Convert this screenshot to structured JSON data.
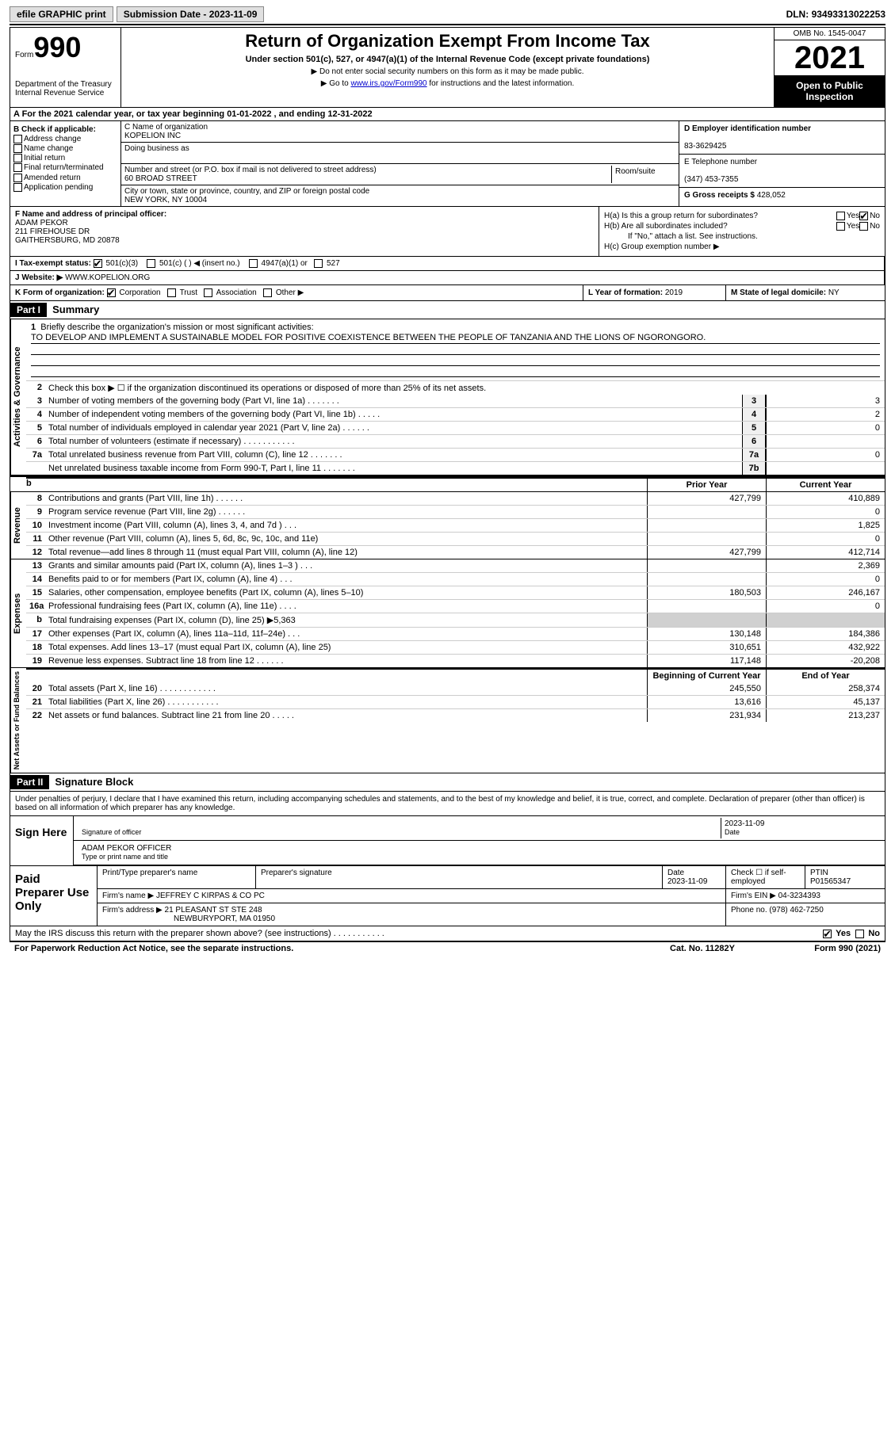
{
  "topbar": {
    "efile": "efile GRAPHIC print",
    "subdate_label": "Submission Date - ",
    "subdate": "2023-11-09",
    "dln_label": "DLN: ",
    "dln": "93493313022253"
  },
  "header": {
    "form_label": "Form",
    "form_num": "990",
    "dept": "Department of the Treasury\nInternal Revenue Service",
    "title": "Return of Organization Exempt From Income Tax",
    "sub": "Under section 501(c), 527, or 4947(a)(1) of the Internal Revenue Code (except private foundations)",
    "note1": "▶ Do not enter social security numbers on this form as it may be made public.",
    "note2_pre": "▶ Go to ",
    "note2_link": "www.irs.gov/Form990",
    "note2_post": " for instructions and the latest information.",
    "omb": "OMB No. 1545-0047",
    "year": "2021",
    "inspect": "Open to Public Inspection"
  },
  "rowA": {
    "text": "A For the 2021 calendar year, or tax year beginning 01-01-2022   , and ending 12-31-2022"
  },
  "colB": {
    "title": "B Check if applicable:",
    "items": [
      "Address change",
      "Name change",
      "Initial return",
      "Final return/terminated",
      "Amended return",
      "Application pending"
    ]
  },
  "colC": {
    "name_label": "C Name of organization",
    "name": "KOPELION INC",
    "dba_label": "Doing business as",
    "dba": "",
    "street_label": "Number and street (or P.O. box if mail is not delivered to street address)",
    "room_label": "Room/suite",
    "street": "60 BROAD STREET",
    "city_label": "City or town, state or province, country, and ZIP or foreign postal code",
    "city": "NEW YORK, NY  10004"
  },
  "colD": {
    "ein_label": "D Employer identification number",
    "ein": "83-3629425",
    "tel_label": "E Telephone number",
    "tel": "(347) 453-7355",
    "gross_label": "G Gross receipts $ ",
    "gross": "428,052"
  },
  "colF": {
    "label": "F  Name and address of principal officer:",
    "name": "ADAM PEKOR",
    "addr1": "211 FIREHOUSE DR",
    "addr2": "GAITHERSBURG, MD  20878"
  },
  "colH": {
    "ha": "H(a)  Is this a group return for subordinates?",
    "hb": "H(b)  Are all subordinates included?",
    "hb_note": "If \"No,\" attach a list. See instructions.",
    "hc": "H(c)  Group exemption number ▶",
    "yes": "Yes",
    "no": "No"
  },
  "rowI": {
    "label": "I   Tax-exempt status:",
    "opts": [
      "501(c)(3)",
      "501(c) (  ) ◀ (insert no.)",
      "4947(a)(1) or",
      "527"
    ]
  },
  "rowJ": {
    "label": "J   Website: ▶  ",
    "val": "WWW.KOPELION.ORG"
  },
  "rowK": {
    "label": "K Form of organization:",
    "opts": [
      "Corporation",
      "Trust",
      "Association",
      "Other ▶"
    ]
  },
  "rowL": {
    "label": "L Year of formation: ",
    "val": "2019"
  },
  "rowM": {
    "label": "M State of legal domicile: ",
    "val": "NY"
  },
  "part1": {
    "hdr": "Part I",
    "title": "Summary"
  },
  "mission": {
    "num": "1",
    "label": "Briefly describe the organization's mission or most significant activities:",
    "text": "TO DEVELOP AND IMPLEMENT A SUSTAINABLE MODEL FOR POSITIVE COEXISTENCE BETWEEN THE PEOPLE OF TANZANIA AND THE LIONS OF NGORONGORO."
  },
  "line2": "Check this box ▶ ☐  if the organization discontinued its operations or disposed of more than 25% of its net assets.",
  "summary_lines": [
    {
      "n": "3",
      "d": "Number of voting members of the governing body (Part VI, line 1a)  .    .    .    .    .    .    .",
      "b": "3",
      "v": "3"
    },
    {
      "n": "4",
      "d": "Number of independent voting members of the governing body (Part VI, line 1b)   .    .    .    .    .",
      "b": "4",
      "v": "2"
    },
    {
      "n": "5",
      "d": "Total number of individuals employed in calendar year 2021 (Part V, line 2a)  .    .    .    .    .    .",
      "b": "5",
      "v": "0"
    },
    {
      "n": "6",
      "d": "Total number of volunteers (estimate if necessary)    .    .    .    .    .    .    .    .    .    .    .",
      "b": "6",
      "v": ""
    },
    {
      "n": "7a",
      "d": "Total unrelated business revenue from Part VIII, column (C), line 12   .    .    .    .    .    .    .",
      "b": "7a",
      "v": "0"
    },
    {
      "n": "",
      "d": "Net unrelated business taxable income from Form 990-T, Part I, line 11  .    .    .    .    .    .    .",
      "b": "7b",
      "v": ""
    }
  ],
  "col_hdrs": {
    "prior": "Prior Year",
    "current": "Current Year",
    "boy": "Beginning of Current Year",
    "eoy": "End of Year"
  },
  "revenue": [
    {
      "n": "8",
      "d": "Contributions and grants (Part VIII, line 1h)   .    .    .    .    .    .",
      "p": "427,799",
      "c": "410,889"
    },
    {
      "n": "9",
      "d": "Program service revenue (Part VIII, line 2g)   .    .    .    .    .    .",
      "p": "",
      "c": "0"
    },
    {
      "n": "10",
      "d": "Investment income (Part VIII, column (A), lines 3, 4, and 7d )   .    .    .",
      "p": "",
      "c": "1,825"
    },
    {
      "n": "11",
      "d": "Other revenue (Part VIII, column (A), lines 5, 6d, 8c, 9c, 10c, and 11e)",
      "p": "",
      "c": "0"
    },
    {
      "n": "12",
      "d": "Total revenue—add lines 8 through 11 (must equal Part VIII, column (A), line 12)",
      "p": "427,799",
      "c": "412,714"
    }
  ],
  "expenses": [
    {
      "n": "13",
      "d": "Grants and similar amounts paid (Part IX, column (A), lines 1–3 )   .    .    .",
      "p": "",
      "c": "2,369"
    },
    {
      "n": "14",
      "d": "Benefits paid to or for members (Part IX, column (A), line 4)   .    .    .",
      "p": "",
      "c": "0"
    },
    {
      "n": "15",
      "d": "Salaries, other compensation, employee benefits (Part IX, column (A), lines 5–10)",
      "p": "180,503",
      "c": "246,167"
    },
    {
      "n": "16a",
      "d": "Professional fundraising fees (Part IX, column (A), line 11e)   .    .    .    .",
      "p": "",
      "c": "0"
    },
    {
      "n": "b",
      "d": "Total fundraising expenses (Part IX, column (D), line 25) ▶5,363",
      "p": "shade",
      "c": "shade"
    },
    {
      "n": "17",
      "d": "Other expenses (Part IX, column (A), lines 11a–11d, 11f–24e)   .    .    .",
      "p": "130,148",
      "c": "184,386"
    },
    {
      "n": "18",
      "d": "Total expenses. Add lines 13–17 (must equal Part IX, column (A), line 25)",
      "p": "310,651",
      "c": "432,922"
    },
    {
      "n": "19",
      "d": "Revenue less expenses. Subtract line 18 from line 12   .    .    .    .    .    .",
      "p": "117,148",
      "c": "-20,208"
    }
  ],
  "netassets": [
    {
      "n": "20",
      "d": "Total assets (Part X, line 16)  .    .    .    .    .    .    .    .    .    .    .    .",
      "p": "245,550",
      "c": "258,374"
    },
    {
      "n": "21",
      "d": "Total liabilities (Part X, line 26)   .    .    .    .    .    .    .    .    .    .    .",
      "p": "13,616",
      "c": "45,137"
    },
    {
      "n": "22",
      "d": "Net assets or fund balances. Subtract line 21 from line 20   .    .    .    .    .",
      "p": "231,934",
      "c": "213,237"
    }
  ],
  "vlabels": {
    "ag": "Activities & Governance",
    "rev": "Revenue",
    "exp": "Expenses",
    "na": "Net Assets or\nFund Balances"
  },
  "part2": {
    "hdr": "Part II",
    "title": "Signature Block"
  },
  "sig": {
    "decl": "Under penalties of perjury, I declare that I have examined this return, including accompanying schedules and statements, and to the best of my knowledge and belief, it is true, correct, and complete. Declaration of preparer (other than officer) is based on all information of which preparer has any knowledge.",
    "sign_here": "Sign Here",
    "sig_officer": "Signature of officer",
    "sig_date": "2023-11-09",
    "date_label": "Date",
    "name_title": "ADAM PEKOR  OFFICER",
    "name_title_label": "Type or print name and title",
    "paid": "Paid Preparer Use Only",
    "prep_name_label": "Print/Type preparer's name",
    "prep_sig_label": "Preparer's signature",
    "prep_date_label": "Date",
    "prep_date": "2023-11-09",
    "check_self": "Check ☐ if self-employed",
    "ptin_label": "PTIN",
    "ptin": "P01565347",
    "firm_name_label": "Firm's name      ▶ ",
    "firm_name": "JEFFREY C KIRPAS & CO PC",
    "firm_ein_label": "Firm's EIN ▶ ",
    "firm_ein": "04-3234393",
    "firm_addr_label": "Firm's address ▶ ",
    "firm_addr1": "21 PLEASANT ST STE 248",
    "firm_addr2": "NEWBURYPORT, MA  01950",
    "phone_label": "Phone no. ",
    "phone": "(978) 462-7250"
  },
  "discuss": {
    "q": "May the IRS discuss this return with the preparer shown above? (see instructions)   .    .    .    .    .    .    .    .    .    .    .",
    "yes": "Yes",
    "no": "No"
  },
  "footer": {
    "f1": "For Paperwork Reduction Act Notice, see the separate instructions.",
    "f2": "Cat. No. 11282Y",
    "f3": "Form 990 (2021)"
  }
}
